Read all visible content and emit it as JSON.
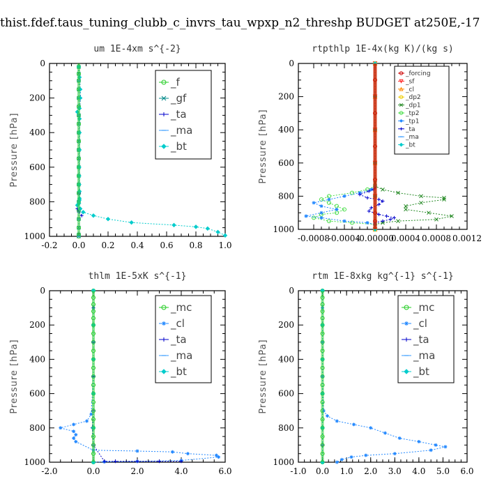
{
  "figure_title": "thist.fdef.taus_tuning_clubb_c_invrs_tau_wpxp_n2_threshp  BUDGET at250E,-17",
  "chart_data": [
    {
      "type": "line",
      "title": "um  1E-4xm s^{-2}",
      "ylabel": "Pressure [hPa]",
      "xlim": [
        -0.2,
        1.0
      ],
      "ylim": [
        1000,
        0
      ],
      "xticks": [
        "-0.2",
        "0.0",
        "0.2",
        "0.4",
        "0.6",
        "0.8",
        "1.0"
      ],
      "yticks": [
        "0",
        "200",
        "400",
        "600",
        "800",
        "1000"
      ],
      "legend": "top-right",
      "series": [
        {
          "name": "_f",
          "color": "#22cc22",
          "marker": "circle",
          "x": [
            0,
            0,
            0,
            0,
            0,
            0,
            0,
            0,
            0,
            0,
            0,
            0,
            0,
            0,
            0,
            0,
            0,
            0,
            0,
            0,
            0,
            0
          ],
          "y": [
            20,
            60,
            100,
            150,
            200,
            250,
            300,
            350,
            400,
            450,
            500,
            550,
            600,
            650,
            700,
            750,
            800,
            850,
            900,
            950,
            990,
            1000
          ]
        },
        {
          "name": "_gf",
          "color": "#008888",
          "marker": "x",
          "x": [
            0,
            0,
            0,
            0,
            0,
            0,
            0,
            0,
            0,
            0,
            0,
            0,
            0,
            0,
            0,
            0,
            0,
            0,
            0,
            0,
            0,
            0
          ],
          "y": [
            20,
            60,
            100,
            150,
            200,
            250,
            300,
            350,
            400,
            450,
            500,
            550,
            600,
            650,
            700,
            750,
            800,
            850,
            900,
            950,
            990,
            1000
          ]
        },
        {
          "name": "_ta",
          "color": "#0000cc",
          "marker": "plus",
          "x": [
            0,
            0.005,
            0.01,
            0.012,
            0.005,
            -0.01,
            0.005,
            0.005,
            0.005,
            0.003,
            0.003,
            0.003,
            0.003,
            0.003,
            0.003,
            -0.01,
            -0.01,
            0.0,
            0.02
          ],
          "y": [
            20,
            80,
            150,
            200,
            260,
            280,
            320,
            400,
            500,
            600,
            650,
            700,
            750,
            790,
            810,
            820,
            840,
            860,
            880
          ]
        },
        {
          "name": "_ma",
          "color": "#3399ff",
          "marker": "dash",
          "x": [
            0,
            0,
            0,
            0,
            0,
            0,
            0,
            0,
            0,
            0
          ],
          "y": [
            100,
            200,
            300,
            400,
            500,
            600,
            700,
            800,
            900,
            1000
          ]
        },
        {
          "name": "_bt",
          "color": "#00cccc",
          "marker": "diamond",
          "x": [
            0,
            0.005,
            0.01,
            0.01,
            0.005,
            -0.01,
            0.005,
            0.005,
            0.005,
            0.003,
            0.003,
            0.003,
            0.005,
            0.005,
            0.005,
            0.0,
            -0.01,
            0.01,
            0.03,
            0.1,
            0.2,
            0.36,
            0.65,
            0.8,
            0.88,
            0.95,
            1.0
          ],
          "y": [
            20,
            80,
            150,
            200,
            260,
            280,
            320,
            400,
            500,
            600,
            650,
            700,
            740,
            780,
            790,
            810,
            820,
            840,
            860,
            880,
            900,
            920,
            935,
            945,
            955,
            975,
            995
          ]
        }
      ]
    },
    {
      "type": "line",
      "title": "rtpthlp  1E-4x(kg K)/(kg s)",
      "ylabel": "Pressure [hPa]",
      "xlim": [
        -0.001,
        0.0012
      ],
      "ylim": [
        1000,
        0
      ],
      "xticks": [
        "-0.0008",
        "-0.0004",
        "-0.00000",
        "0.0004",
        "0.0008",
        "0.0012"
      ],
      "yticks": [
        "0",
        "200",
        "400",
        "600",
        "800",
        "1000"
      ],
      "legend": "top-right",
      "series": [
        {
          "name": "_forcing",
          "color": "#cc0000",
          "marker": "circle",
          "x": [
            0,
            0,
            0,
            0,
            0,
            0,
            0,
            0,
            0,
            0,
            0,
            0
          ],
          "y": [
            0,
            100,
            200,
            300,
            400,
            500,
            600,
            700,
            800,
            900,
            950,
            1000
          ]
        },
        {
          "name": "_sf",
          "color": "#ff2222",
          "marker": "triangle-down",
          "x": [
            0,
            0,
            0,
            0,
            0,
            0
          ],
          "y": [
            0,
            200,
            400,
            600,
            800,
            1000
          ]
        },
        {
          "name": "_cl",
          "color": "#ff8800",
          "marker": "triangle",
          "x": [
            0,
            0,
            0,
            0,
            0,
            0
          ],
          "y": [
            0,
            200,
            400,
            600,
            800,
            1000
          ]
        },
        {
          "name": "_dp2",
          "color": "#eecc00",
          "marker": "circle",
          "x": [
            0,
            0,
            0,
            0,
            0,
            0
          ],
          "y": [
            0,
            200,
            400,
            600,
            800,
            1000
          ]
        },
        {
          "name": "_dp1",
          "color": "#228822",
          "marker": "x",
          "x": [
            0,
            0,
            0.0001,
            0.0003,
            0.0006,
            0.0009,
            0.0009,
            0.0006,
            0.0004,
            0.0004,
            0.0007,
            0.001,
            0.0008,
            0.0003,
            0.0001,
            0
          ],
          "y": [
            720,
            740,
            760,
            780,
            800,
            810,
            820,
            840,
            860,
            880,
            900,
            920,
            940,
            950,
            960,
            970
          ]
        },
        {
          "name": "_tp2",
          "color": "#44dd44",
          "marker": "circle",
          "x": [
            0,
            -0.0001,
            -0.0003,
            -0.0006,
            -0.0007,
            -0.0006,
            -0.0005,
            -0.0004,
            -0.0005,
            -0.0007,
            -0.0008,
            -0.0006,
            -0.0003,
            0
          ],
          "y": [
            740,
            760,
            780,
            800,
            820,
            840,
            860,
            880,
            900,
            910,
            930,
            950,
            960,
            970
          ]
        },
        {
          "name": "_tp1",
          "color": "#2288ff",
          "marker": "star",
          "x": [
            0,
            -5e-05,
            -0.0002,
            -0.0004,
            -0.0006,
            -0.0008,
            -0.0007,
            -0.0005,
            -0.0007,
            -0.0009,
            -0.0007,
            -0.0004,
            -0.0001,
            0
          ],
          "y": [
            740,
            760,
            780,
            800,
            820,
            840,
            860,
            880,
            900,
            920,
            930,
            950,
            960,
            970
          ]
        },
        {
          "name": "_ta",
          "color": "#0000cc",
          "marker": "plus",
          "x": [
            0,
            -2e-05,
            -8e-05,
            -0.0002,
            -0.0001,
            5e-05,
            0.0001,
            5e-05,
            -5e-05,
            -8e-05,
            5e-05,
            0.00015,
            0.00025,
            0.0002,
            0.0001,
            0
          ],
          "y": [
            750,
            760,
            770,
            790,
            810,
            820,
            830,
            850,
            870,
            890,
            910,
            920,
            930,
            940,
            950,
            960
          ]
        },
        {
          "name": "_ma",
          "color": "#3399ff",
          "marker": "dash",
          "x": [
            0,
            0,
            0,
            0,
            0,
            0
          ],
          "y": [
            0,
            200,
            400,
            600,
            800,
            1000
          ]
        },
        {
          "name": "_bt",
          "color": "#00cccc",
          "marker": "diamond",
          "x": [
            0,
            0,
            0,
            0,
            0,
            0
          ],
          "y": [
            0,
            200,
            400,
            600,
            800,
            1000
          ]
        }
      ]
    },
    {
      "type": "line",
      "title": "thlm  1E-5xK s^{-1}",
      "ylabel": "Pressure [hPa]",
      "xlim": [
        -2.0,
        6.0
      ],
      "ylim": [
        1000,
        0
      ],
      "xticks": [
        "-2.0",
        "0.0",
        "2.0",
        "4.0",
        "6.0"
      ],
      "yticks": [
        "0",
        "200",
        "400",
        "600",
        "800",
        "1000"
      ],
      "legend": "top-right",
      "series": [
        {
          "name": "_mc",
          "color": "#22cc22",
          "marker": "circle",
          "x": [
            0,
            0,
            0,
            0,
            0,
            0,
            0,
            0,
            0,
            0,
            0,
            0,
            0,
            0,
            0,
            0,
            0,
            0,
            0,
            0,
            0,
            0
          ],
          "y": [
            0,
            40,
            80,
            120,
            160,
            200,
            250,
            300,
            350,
            400,
            450,
            500,
            550,
            600,
            650,
            700,
            750,
            800,
            850,
            900,
            950,
            1000
          ]
        },
        {
          "name": "_cl",
          "color": "#2288ff",
          "marker": "star",
          "x": [
            0,
            0,
            0,
            0,
            0,
            0,
            -0.1,
            -0.3,
            -0.9,
            -1.5,
            -0.9,
            -0.8,
            -0.9,
            -0.8,
            0,
            2.0,
            3.6,
            4.3,
            5.6,
            5.7,
            4.0,
            2.0,
            0.5,
            0
          ],
          "y": [
            0,
            100,
            200,
            300,
            400,
            500,
            720,
            760,
            780,
            800,
            820,
            840,
            860,
            880,
            930,
            935,
            940,
            950,
            960,
            970,
            990,
            995,
            998,
            1000
          ]
        },
        {
          "name": "_ta",
          "color": "#0000cc",
          "marker": "plus",
          "x": [
            0,
            0,
            0,
            0,
            0,
            0,
            0,
            0,
            -0.05,
            0,
            0.5,
            1.0,
            2.0,
            3.0,
            4.0
          ],
          "y": [
            0,
            100,
            200,
            300,
            400,
            500,
            600,
            700,
            800,
            900,
            995,
            995,
            995,
            995,
            995
          ]
        },
        {
          "name": "_ma",
          "color": "#3399ff",
          "marker": "dash",
          "x": [
            0,
            0,
            0,
            0,
            0,
            0
          ],
          "y": [
            0,
            200,
            400,
            600,
            800,
            1000
          ]
        },
        {
          "name": "_bt",
          "color": "#00cccc",
          "marker": "diamond",
          "x": [
            0,
            0,
            0,
            0,
            0,
            0
          ],
          "y": [
            0,
            200,
            400,
            600,
            800,
            1000
          ]
        }
      ]
    },
    {
      "type": "line",
      "title": "rtm  1E-8xkg kg^{-1} s^{-1}",
      "ylabel": "Pressure [hPa]",
      "xlim": [
        -1.0,
        6.0
      ],
      "ylim": [
        1000,
        0
      ],
      "xticks": [
        "-1.0",
        "0.0",
        "1.0",
        "2.0",
        "3.0",
        "4.0",
        "5.0",
        "6.0"
      ],
      "yticks": [
        "0",
        "200",
        "400",
        "600",
        "800",
        "1000"
      ],
      "legend": "top-right",
      "series": [
        {
          "name": "_mc",
          "color": "#22cc22",
          "marker": "circle",
          "x": [
            0,
            0,
            0,
            0,
            0,
            0,
            0,
            0,
            0,
            0,
            0,
            0,
            0,
            0,
            0,
            0,
            0,
            0,
            0,
            0,
            0,
            0
          ],
          "y": [
            0,
            40,
            80,
            120,
            160,
            200,
            250,
            300,
            350,
            400,
            450,
            500,
            550,
            600,
            650,
            700,
            750,
            800,
            850,
            900,
            950,
            1000
          ]
        },
        {
          "name": "_cl",
          "color": "#2288ff",
          "marker": "star",
          "x": [
            0,
            0,
            0,
            0,
            0,
            0,
            0.05,
            0.2,
            0.6,
            1.3,
            2.0,
            2.6,
            3.2,
            4.0,
            4.7,
            5.1,
            4.5,
            3.0,
            1.8,
            1.2,
            0.8,
            0.6
          ],
          "y": [
            0,
            100,
            200,
            300,
            400,
            500,
            700,
            730,
            760,
            780,
            800,
            830,
            860,
            880,
            900,
            910,
            930,
            950,
            960,
            970,
            985,
            1000
          ]
        },
        {
          "name": "_ta",
          "color": "#0000cc",
          "marker": "plus",
          "x": [
            0,
            0,
            0,
            0,
            0,
            0,
            0
          ],
          "y": [
            0,
            200,
            400,
            600,
            800,
            900,
            1000
          ]
        },
        {
          "name": "_ma",
          "color": "#3399ff",
          "marker": "dash",
          "x": [
            0,
            0,
            0,
            0,
            0,
            0
          ],
          "y": [
            0,
            200,
            400,
            600,
            800,
            1000
          ]
        },
        {
          "name": "_bt",
          "color": "#00cccc",
          "marker": "diamond",
          "x": [
            0,
            0,
            0,
            0,
            0,
            0
          ],
          "y": [
            0,
            200,
            400,
            600,
            800,
            1000
          ]
        }
      ]
    }
  ]
}
